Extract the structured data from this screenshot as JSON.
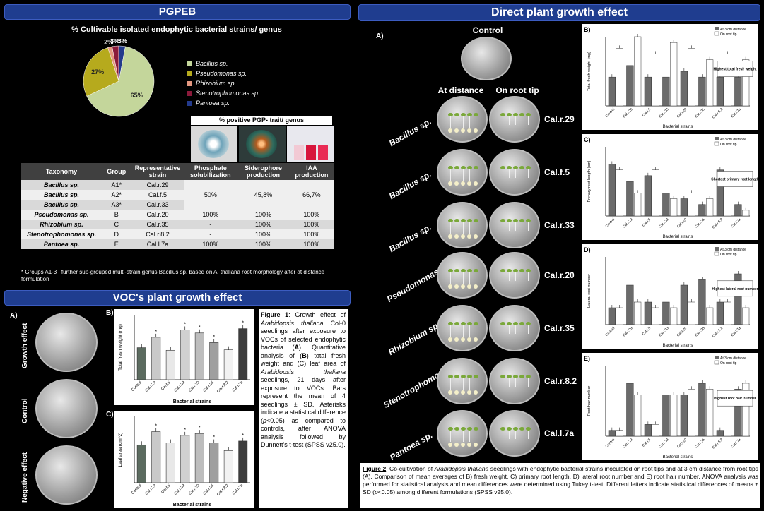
{
  "pgpeb": {
    "title": "PGPEB",
    "pie_title": "% Cultivable isolated endophytic bacterial strains/ genus",
    "pie_labels": [
      "65%",
      "27%",
      "2%",
      "3%",
      "3%"
    ],
    "legend": [
      {
        "name": "Bacillus sp.",
        "color": "#c4d69b"
      },
      {
        "name": "Pseudomonas sp.",
        "color": "#b6aa1d"
      },
      {
        "name": "Rhizobium sp.",
        "color": "#e49780"
      },
      {
        "name": "Stenotrophomonas sp.",
        "color": "#8b1a3b"
      },
      {
        "name": "Pantoea sp.",
        "color": "#233a8c"
      }
    ],
    "trait_title": "% positive PGP- trait/ genus",
    "headers": [
      "Taxonomy",
      "Group",
      "Representative strain",
      "Phosphate solubilization",
      "Siderophore production",
      "IAA production"
    ],
    "rows": [
      [
        "Bacillus sp.",
        "A1*",
        "Cal.r.29"
      ],
      [
        "Bacillus sp.",
        "A2*",
        "Cal.f.5"
      ],
      [
        "Bacillus sp.",
        "A3*",
        "Cal.r.33"
      ],
      [
        "Pseudomonas sp.",
        "B",
        "Cal.r.20",
        "100%",
        "100%",
        "100%"
      ],
      [
        "Rhizobium sp.",
        "C",
        "Cal.r.35",
        "-",
        "100%",
        "100%"
      ],
      [
        "Stenotrophomonas sp.",
        "D",
        "Cal.r.8.2",
        "-",
        "100%",
        "100%"
      ],
      [
        "Pantoea sp.",
        "E",
        "Cal.l.7a",
        "100%",
        "100%",
        "100%"
      ]
    ],
    "bacillus_values": [
      "50%",
      "45,8%",
      "66,7%"
    ],
    "footnote": "* Groups A1-3 : further sup-grouped multi-strain genus Bacillus sp. based on A. thaliana root morphology after at distance formulation"
  },
  "voc": {
    "title": "VOC's plant growth effect",
    "panel_a": "A)",
    "panel_b": "B)",
    "panel_c": "C)",
    "row_labels": [
      "Growth effect",
      "Control",
      "Negative effect"
    ],
    "xlabel": "Bacterial strains",
    "ylabel_b": "Total fresh weight (mg)",
    "ylabel_c": "Leaf area (cm^2)",
    "categories": [
      "Control",
      "Cal.r.29",
      "Cal.f.5",
      "Cal.r.33",
      "Cal.r.20",
      "Cal.r.35",
      "Cal.r.8.2",
      "Cal.l.7a"
    ],
    "caption": {
      "fig": "Figure 1",
      "text1": ": Growth effect of ",
      "it1": "Arabidopsis thaliana",
      "text2": " Col-0 seedlings after exposure to VOCs of selected endophytic bacteria (",
      "a": "A",
      "text3": "). Quantitative analysis of (",
      "b": "B",
      "text4": ") total fresh weight and (C) leaf area of ",
      "it2": "Arabidopsis thaliana",
      "text5": " seedlings, 21 days after exposure to VOCs. Bars represent the mean of 4 seedlings ± SD. Asterisks indicate a statistical difference (",
      "p": "p",
      "text6": "<0.05) as compared to controls, after ANOVA analysis followed by Dunnett's t-test (SPSS v25.0)."
    }
  },
  "direct": {
    "title": "Direct plant growth effect",
    "panel_a": "A)",
    "control": "Control",
    "at_distance": "At distance",
    "on_root_tip": "On root tip",
    "genus_labels": [
      "Bacillus sp.",
      "Bacillus sp.",
      "Bacillus sp.",
      "Pseudomonas sp.",
      "Rhizobium sp.",
      "Stenotrophomonas sp.",
      "Pantoea sp."
    ],
    "strains": [
      "Cal.r.29",
      "Cal.f.5",
      "Cal.r.33",
      "Cal.r.20",
      "Cal.r.35",
      "Cal.r.8.2",
      "Cal.l.7a"
    ],
    "graphs": [
      {
        "panel": "B)",
        "ylabel": "Total fresh weight (mg)",
        "note": "Highest total fresh weight"
      },
      {
        "panel": "C)",
        "ylabel": "Primary root length (cm)",
        "note": "Shortest primary root length"
      },
      {
        "panel": "D)",
        "ylabel": "Lateral root number",
        "note": "Highest lateral root number"
      },
      {
        "panel": "E)",
        "ylabel": "Root hair number",
        "note": "Highest root hair number"
      }
    ],
    "graph_xlabel": "Bacterial strains",
    "legend_dist": "At 3 cm distance",
    "legend_tip": "On root tip",
    "caption": {
      "fig": "Figure 2",
      "text1": ": Co-cultivation of ",
      "it1": "Arabidopsis thaliana",
      "text2": " seedlings with endophytic bacterial strains inoculated on root tips and at 3 cm distance from root tips (A). Comparison of mean averages of B) fresh weight, C) primary root length, D) lateral root number and E) root hair number. ANOVA analysis was performed for statistical analysis and mean differences were determined using Tukey t-test. Different letters indicate statistical differences of means ± SD (",
      "p": "p",
      "text3": "<0.05) among different formulations (SPSS v25.0)."
    }
  },
  "chart_data": [
    {
      "type": "pie",
      "title": "% Cultivable isolated endophytic bacterial strains/ genus",
      "categories": [
        "Bacillus sp.",
        "Pseudomonas sp.",
        "Rhizobium sp.",
        "Stenotrophomonas sp.",
        "Pantoea sp."
      ],
      "values": [
        65,
        27,
        2,
        3,
        3
      ]
    },
    {
      "type": "bar",
      "xlabel": "Bacterial strains",
      "ylabel": "Total fresh weight (mg)",
      "categories": [
        "Control",
        "Cal.r.29",
        "Cal.f.5",
        "Cal.r.33",
        "Cal.r.20",
        "Cal.r.35",
        "Cal.r.8.2",
        "Cal.l.7a"
      ],
      "values": [
        7.4,
        9.8,
        6.8,
        11.5,
        10.8,
        8.6,
        6.9,
        11.8
      ],
      "ylim": [
        0,
        15
      ]
    },
    {
      "type": "bar",
      "xlabel": "Bacterial strains",
      "ylabel": "Leaf area (cm^2)",
      "categories": [
        "Control",
        "Cal.r.29",
        "Cal.f.5",
        "Cal.r.33",
        "Cal.r.20",
        "Cal.r.35",
        "Cal.r.8.2",
        "Cal.l.7a"
      ],
      "values": [
        2.0,
        2.7,
        2.1,
        2.5,
        2.6,
        2.1,
        1.7,
        2.2
      ],
      "ylim": [
        0,
        3.5
      ]
    }
  ]
}
